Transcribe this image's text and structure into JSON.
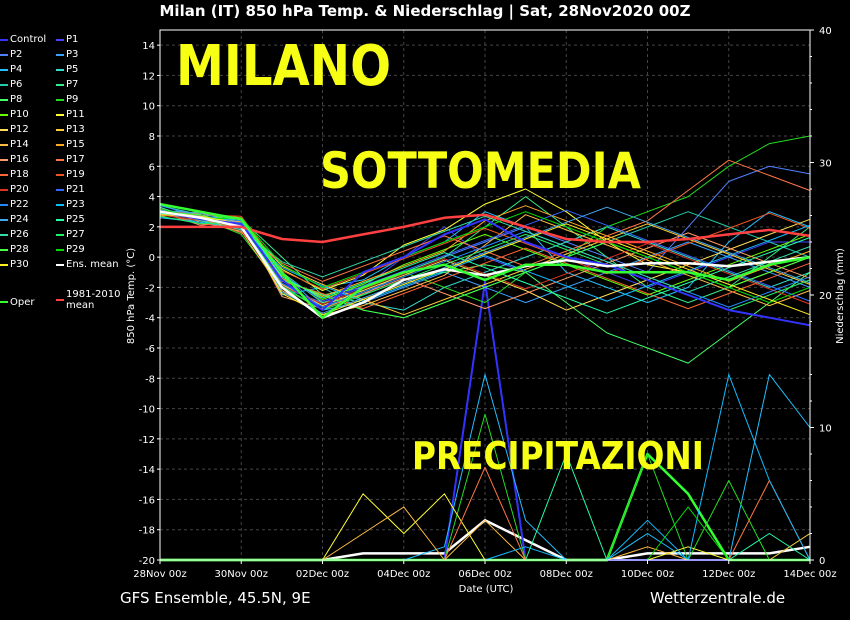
{
  "title": "Milan  (IT)  850 hPa Temp. & Niederschlag | Sat, 28Nov2020 00Z",
  "footer": {
    "left": "GFS Ensemble, 45.5N, 9E",
    "right": "Wetterzentrale.de"
  },
  "overlay": {
    "line1": "MILANO",
    "line2": "SOTTOMEDIA",
    "line3": "PRECIPITAZIONI"
  },
  "chart_data": {
    "type": "line",
    "title": "Milan  (IT)  850 hPa Temp. & Niederschlag | Sat, 28Nov2020 00Z",
    "xlabel": "Date (UTC)",
    "ylabel": "850 hPa Temp. (°C)",
    "y2label": "Niederschlag (mm)",
    "ylim": [
      -20,
      15
    ],
    "y2lim": [
      0,
      40
    ],
    "grid": true,
    "xticks": [
      "28Nov 00z",
      "30Nov 00z",
      "02Dec 00z",
      "04Dec 00z",
      "06Dec 00z",
      "08Dec 00z",
      "10Dec 00z",
      "12Dec 00z",
      "14Dec 00z"
    ],
    "yticks": [
      14,
      12,
      10,
      8,
      6,
      4,
      2,
      0,
      -2,
      -4,
      -6,
      -8,
      -10,
      -12,
      -14,
      -16,
      -18,
      -20
    ],
    "y2ticks": [
      0,
      10,
      20,
      30,
      40
    ],
    "x_hours": [
      0,
      24,
      48,
      72,
      96,
      120,
      144,
      168,
      192,
      216,
      240,
      264,
      288,
      312,
      336,
      360,
      384
    ],
    "series": [
      {
        "name": "Ens. mean",
        "color": "#ffffff",
        "width": 2.5,
        "values": [
          3,
          2.6,
          2,
          -2,
          -4,
          -3,
          -1.5,
          -0.8,
          -1.2,
          -0.6,
          -0.2,
          -0.6,
          -0.4,
          -0.4,
          -0.6,
          -0.3,
          0
        ]
      },
      {
        "name": "1981-2010 mean",
        "color": "#ff4040",
        "width": 2.5,
        "values": [
          2,
          2,
          2,
          1.2,
          1,
          1.5,
          2,
          2.6,
          2.8,
          2,
          1.2,
          1,
          1,
          1.2,
          1.5,
          1.8,
          1.4
        ]
      },
      {
        "name": "Oper",
        "color": "#33ff33",
        "width": 2.5,
        "values": [
          3.5,
          3,
          2.5,
          -1,
          -4,
          -2,
          -1,
          -0.5,
          -1.5,
          -0.5,
          -0.5,
          -1,
          -1,
          -1,
          -1.5,
          -0.5,
          0
        ]
      },
      {
        "name": "Control",
        "color": "#3333ff",
        "width": 2,
        "values": [
          3,
          2.5,
          2.2,
          -1.5,
          -3.5,
          -1,
          0,
          1.5,
          2.5,
          1,
          0,
          -0.5,
          -1.5,
          -2.5,
          -3.5,
          -4,
          -4.5
        ]
      },
      {
        "name": "P1",
        "color": "#4444ff",
        "width": 1,
        "values": [
          3,
          2.8,
          2,
          -1,
          -3,
          -2,
          0,
          2,
          0,
          -1,
          0,
          -1,
          -2,
          -1,
          0,
          1,
          1
        ]
      },
      {
        "name": "P2",
        "color": "#4f81ff",
        "width": 1,
        "values": [
          3.2,
          2.6,
          2.4,
          -2,
          -3,
          -2.5,
          -1,
          0,
          1,
          2,
          1,
          0,
          -1,
          2,
          5,
          6,
          5.5
        ]
      },
      {
        "name": "P3",
        "color": "#3aa0ff",
        "width": 1,
        "values": [
          2.8,
          2.4,
          1.8,
          -1,
          -3.5,
          -3,
          -2,
          -1,
          -2,
          -3,
          -2,
          -1,
          0,
          1,
          0,
          -1,
          -2
        ]
      },
      {
        "name": "P4",
        "color": "#22c0ff",
        "width": 1,
        "values": [
          3,
          2.2,
          2.6,
          -2.5,
          -2,
          -1.5,
          0,
          1,
          3,
          2,
          -1,
          -2,
          -3,
          -2,
          1,
          3,
          2
        ]
      },
      {
        "name": "P5",
        "color": "#33ddcc",
        "width": 1,
        "values": [
          3.4,
          2.8,
          2,
          -1.5,
          -2.5,
          -3,
          -3.5,
          -2,
          -1,
          0,
          1,
          2,
          1,
          0,
          -1,
          -2,
          -1
        ]
      },
      {
        "name": "P6",
        "color": "#22ccaa",
        "width": 1,
        "values": [
          2.6,
          2.4,
          2.2,
          -0.5,
          -2,
          -3.5,
          -4,
          -3,
          -2,
          -1,
          0,
          1,
          2,
          3,
          2,
          1,
          0
        ]
      },
      {
        "name": "P7",
        "color": "#33ee88",
        "width": 1,
        "values": [
          3,
          2.8,
          2.5,
          0,
          -2.5,
          -2,
          -1,
          0,
          2,
          4,
          2,
          0,
          -2,
          -3,
          -2,
          0,
          2
        ]
      },
      {
        "name": "P8",
        "color": "#44ff66",
        "width": 1,
        "values": [
          3.5,
          2.5,
          2.2,
          -1,
          -3,
          -2.5,
          -1.5,
          -1,
          -0.5,
          -1,
          -3,
          -5,
          -6,
          -7,
          -5,
          -3,
          -1
        ]
      },
      {
        "name": "P9",
        "color": "#22dd22",
        "width": 1,
        "values": [
          3,
          2.6,
          1.5,
          -2,
          -3.5,
          -2,
          -1,
          -2,
          -3,
          -1,
          0,
          2,
          3,
          4,
          6,
          7.5,
          8
        ]
      },
      {
        "name": "P10",
        "color": "#66ff00",
        "width": 1,
        "values": [
          2.8,
          3,
          2.2,
          -1.2,
          -2.8,
          -1.8,
          -0.5,
          0.5,
          1.5,
          0.5,
          -0.5,
          -1.5,
          -2.5,
          -1.5,
          -0.5,
          0.5,
          1.5
        ]
      },
      {
        "name": "P11",
        "color": "#ffff33",
        "width": 1,
        "values": [
          3.2,
          2.4,
          1.9,
          -0.8,
          -2.2,
          -1.2,
          0.8,
          1.8,
          3.5,
          4.5,
          3,
          1,
          -0.5,
          -1,
          -2,
          -1,
          0
        ]
      },
      {
        "name": "P12",
        "color": "#ffdd55",
        "width": 1,
        "values": [
          2.9,
          2.5,
          2.1,
          -1.8,
          -3.2,
          -2.2,
          -1.2,
          -0.2,
          -1.2,
          -2.2,
          -3.5,
          -2.5,
          -1.5,
          -0.5,
          0.5,
          1.5,
          2.5
        ]
      },
      {
        "name": "P13",
        "color": "#ffcc33",
        "width": 1,
        "values": [
          3.1,
          2.7,
          2.3,
          -0.6,
          -1.8,
          -2.8,
          -3.8,
          -2.8,
          -1.8,
          -0.8,
          0.2,
          1.2,
          2.2,
          1.2,
          0.2,
          -0.8,
          -1.8
        ]
      },
      {
        "name": "P14",
        "color": "#ffbb44",
        "width": 1,
        "values": [
          3.3,
          2.3,
          1.7,
          -2.2,
          -3.8,
          -3.2,
          -2.2,
          -1.2,
          0.8,
          2.8,
          1.8,
          0.8,
          -0.2,
          -1.2,
          -2.2,
          -3.2,
          -2.2
        ]
      },
      {
        "name": "P15",
        "color": "#ffaa22",
        "width": 1,
        "values": [
          2.7,
          2.9,
          2.6,
          -1.4,
          -2.6,
          -1.6,
          -0.6,
          0.4,
          2.4,
          3.4,
          2.4,
          1.4,
          0.4,
          -0.6,
          -1.6,
          -0.6,
          0.4
        ]
      },
      {
        "name": "P16",
        "color": "#ff9966",
        "width": 1,
        "values": [
          3,
          2.1,
          2.4,
          -2.6,
          -3.4,
          -2.4,
          -1.4,
          -2.4,
          -3.4,
          -2.4,
          -1.4,
          -0.4,
          0.6,
          1.6,
          0.6,
          -0.4,
          -1.4
        ]
      },
      {
        "name": "P17",
        "color": "#ff7744",
        "width": 1,
        "values": [
          3.2,
          2.6,
          1.6,
          -0.4,
          -1.6,
          -0.6,
          0.4,
          1.4,
          0.4,
          -0.6,
          0.4,
          1.4,
          2.4,
          4.4,
          6.4,
          5.4,
          4.4
        ]
      },
      {
        "name": "P18",
        "color": "#ff6633",
        "width": 1,
        "values": [
          2.9,
          2.2,
          2,
          -1.6,
          -2.4,
          -3.4,
          -2.4,
          -1.4,
          -0.4,
          0.6,
          -0.4,
          -1.4,
          -2.4,
          -3.4,
          -2.4,
          -1.4,
          -0.4
        ]
      },
      {
        "name": "P19",
        "color": "#ee5522",
        "width": 1,
        "values": [
          3.1,
          2.8,
          2.7,
          -0.9,
          -2.1,
          -1.1,
          -0.1,
          0.9,
          1.9,
          0.9,
          -0.1,
          -1.1,
          -0.1,
          0.9,
          1.9,
          2.9,
          1.9
        ]
      },
      {
        "name": "P20",
        "color": "#dd3322",
        "width": 1,
        "values": [
          2.8,
          2.4,
          1.8,
          -1.9,
          -3.1,
          -2.1,
          -1.1,
          -0.1,
          -1.1,
          -2.1,
          -1.1,
          -0.1,
          0.9,
          -0.1,
          -1.1,
          -2.1,
          -3.1
        ]
      },
      {
        "name": "P21",
        "color": "#3366ff",
        "width": 1,
        "values": [
          3,
          2.5,
          2.1,
          -1.1,
          -2.9,
          -1.9,
          -0.9,
          0.1,
          1.1,
          2.1,
          3.1,
          2.1,
          1.1,
          0.1,
          -0.9,
          -1.9,
          -2.9
        ]
      },
      {
        "name": "P22",
        "color": "#2288ff",
        "width": 1,
        "values": [
          3.4,
          2.7,
          2.4,
          -1.7,
          -3.3,
          -2.3,
          -1.3,
          -0.3,
          0.7,
          1.7,
          0.7,
          -0.3,
          -1.3,
          -2.3,
          -3.3,
          -2.3,
          -1.3
        ]
      },
      {
        "name": "P23",
        "color": "#11bbff",
        "width": 1,
        "values": [
          2.6,
          2.3,
          1.9,
          -0.7,
          -1.9,
          -2.9,
          -1.9,
          -0.9,
          0.1,
          -0.9,
          -1.9,
          -2.9,
          -1.9,
          -0.9,
          0.1,
          1.1,
          2.1
        ]
      },
      {
        "name": "P24",
        "color": "#44aaee",
        "width": 1,
        "values": [
          3.1,
          2.9,
          2.2,
          -2.3,
          -3.7,
          -2.7,
          -1.7,
          -0.7,
          0.3,
          1.3,
          2.3,
          3.3,
          2.3,
          1.3,
          0.3,
          -0.7,
          -1.7
        ]
      },
      {
        "name": "P25",
        "color": "#22ffaa",
        "width": 1,
        "values": [
          2.9,
          2.6,
          2.5,
          -1.3,
          -2.7,
          -1.7,
          -0.7,
          0.3,
          -0.7,
          -1.7,
          -2.7,
          -3.7,
          -2.7,
          -1.7,
          -0.7,
          0.3,
          1.3
        ]
      },
      {
        "name": "P26",
        "color": "#33ddaa",
        "width": 1,
        "values": [
          3.3,
          2.4,
          1.8,
          -0.3,
          -1.3,
          -0.3,
          0.7,
          1.7,
          2.7,
          1.7,
          0.7,
          -0.3,
          -1.3,
          -2.3,
          -1.3,
          -0.3,
          0.7
        ]
      },
      {
        "name": "P27",
        "color": "#22ee66",
        "width": 1,
        "values": [
          2.7,
          2.2,
          2.3,
          -1.9,
          -3.5,
          -2.5,
          -1.5,
          -0.5,
          0.5,
          1.5,
          0.5,
          -0.5,
          -1.5,
          -2.5,
          -3.5,
          -2.5,
          -1.5
        ]
      },
      {
        "name": "P28",
        "color": "#44ff44",
        "width": 1,
        "values": [
          3,
          2.8,
          2,
          -1.5,
          -2.5,
          -3.5,
          -4,
          -3,
          -2,
          -1,
          0,
          1,
          0,
          -1,
          -2,
          -1,
          0
        ]
      },
      {
        "name": "P29",
        "color": "#00dd00",
        "width": 1,
        "values": [
          3.2,
          2.5,
          2.6,
          -0.5,
          -2,
          -1,
          0,
          1,
          2,
          3,
          2,
          1,
          0,
          -1,
          -2,
          -3,
          -2
        ]
      },
      {
        "name": "P30",
        "color": "#ffee22",
        "width": 1,
        "values": [
          2.8,
          2.7,
          2.2,
          -2.4,
          -3.8,
          -2.8,
          -1.8,
          -0.8,
          0.2,
          1.2,
          2.2,
          1.2,
          0.2,
          -0.8,
          -1.8,
          -2.8,
          -3.8
        ]
      }
    ],
    "precip_series": [
      {
        "name": "Ens. mean",
        "color": "#ffffff",
        "width": 2.5,
        "values": [
          0,
          0,
          0,
          0,
          0,
          0.5,
          0.5,
          0.5,
          3,
          1.5,
          0,
          0,
          0.5,
          0.5,
          0.5,
          0.5,
          1
        ]
      },
      {
        "name": "Control",
        "color": "#3333ff",
        "width": 2,
        "values": [
          0,
          0,
          0,
          0,
          0,
          0,
          0,
          0,
          21,
          0,
          0,
          0,
          0,
          0,
          0,
          0,
          0
        ]
      },
      {
        "name": "Oper",
        "color": "#33ff33",
        "width": 2.5,
        "values": [
          0,
          0,
          0,
          0,
          0,
          0,
          0,
          0,
          0,
          0,
          0,
          0,
          8,
          5,
          0,
          0,
          0
        ]
      },
      {
        "name": "P4",
        "color": "#22c0ff",
        "width": 1,
        "values": [
          0,
          0,
          0,
          0,
          0,
          0,
          0,
          1,
          14,
          3,
          0,
          0,
          2,
          0,
          0,
          14,
          10
        ]
      },
      {
        "name": "P9",
        "color": "#22dd22",
        "width": 1,
        "values": [
          0,
          0,
          0,
          0,
          0,
          0,
          0,
          0,
          11,
          0,
          0,
          0,
          8,
          0,
          6,
          0,
          2
        ]
      },
      {
        "name": "P11",
        "color": "#ffff33",
        "width": 1,
        "values": [
          0,
          0,
          0,
          0,
          0,
          5,
          2,
          5,
          0,
          0,
          0,
          0,
          0,
          1,
          0,
          0,
          0
        ]
      },
      {
        "name": "P14",
        "color": "#ffbb44",
        "width": 1,
        "values": [
          0,
          0,
          0,
          0,
          0,
          2,
          4,
          0,
          3,
          0,
          0,
          0,
          1,
          0,
          0,
          0,
          2
        ]
      },
      {
        "name": "P17",
        "color": "#ff7744",
        "width": 1,
        "values": [
          0,
          0,
          0,
          0,
          0,
          0,
          0,
          0,
          7,
          0,
          0,
          0,
          0,
          0,
          0,
          6,
          0
        ]
      },
      {
        "name": "P23",
        "color": "#11bbff",
        "width": 1,
        "values": [
          0,
          0,
          0,
          0,
          0,
          0,
          0,
          0,
          0,
          1,
          0,
          0,
          3,
          0,
          14,
          6,
          0
        ]
      },
      {
        "name": "P25",
        "color": "#22ffaa",
        "width": 1,
        "values": [
          0,
          0,
          0,
          0,
          0,
          0,
          0,
          0,
          0,
          0,
          8,
          0,
          0,
          0,
          0,
          2,
          0
        ]
      },
      {
        "name": "P29",
        "color": "#00dd00",
        "width": 1,
        "values": [
          0,
          0,
          0,
          0,
          0,
          0,
          0,
          0,
          0,
          0,
          0,
          0,
          0,
          4,
          0,
          0,
          0
        ]
      }
    ],
    "legend": [
      {
        "name": "Control",
        "color": "#3333ff"
      },
      {
        "name": "P1",
        "color": "#4444ff"
      },
      {
        "name": "P2",
        "color": "#4f81ff"
      },
      {
        "name": "P3",
        "color": "#3aa0ff"
      },
      {
        "name": "P4",
        "color": "#22c0ff"
      },
      {
        "name": "P5",
        "color": "#33ddcc"
      },
      {
        "name": "P6",
        "color": "#22ccaa"
      },
      {
        "name": "P7",
        "color": "#33ee88"
      },
      {
        "name": "P8",
        "color": "#44ff66"
      },
      {
        "name": "P9",
        "color": "#22dd22"
      },
      {
        "name": "P10",
        "color": "#66ff00"
      },
      {
        "name": "P11",
        "color": "#ffff33"
      },
      {
        "name": "P12",
        "color": "#ffdd55"
      },
      {
        "name": "P13",
        "color": "#ffcc33"
      },
      {
        "name": "P14",
        "color": "#ffbb44"
      },
      {
        "name": "P15",
        "color": "#ffaa22"
      },
      {
        "name": "P16",
        "color": "#ff9966"
      },
      {
        "name": "P17",
        "color": "#ff7744"
      },
      {
        "name": "P18",
        "color": "#ff6633"
      },
      {
        "name": "P19",
        "color": "#ee5522"
      },
      {
        "name": "P20",
        "color": "#dd3322"
      },
      {
        "name": "P21",
        "color": "#3366ff"
      },
      {
        "name": "P22",
        "color": "#2288ff"
      },
      {
        "name": "P23",
        "color": "#11bbff"
      },
      {
        "name": "P24",
        "color": "#44aaee"
      },
      {
        "name": "P25",
        "color": "#22ffaa"
      },
      {
        "name": "P26",
        "color": "#33ddaa"
      },
      {
        "name": "P27",
        "color": "#22ee66"
      },
      {
        "name": "P28",
        "color": "#44ff44"
      },
      {
        "name": "P29",
        "color": "#00dd00"
      },
      {
        "name": "P30",
        "color": "#ffee22"
      },
      {
        "name": "Ens. mean",
        "color": "#ffffff"
      },
      {
        "name": "Oper",
        "color": "#33ff33"
      },
      {
        "name": "1981-2010\nmean",
        "color": "#ff4040"
      }
    ]
  }
}
